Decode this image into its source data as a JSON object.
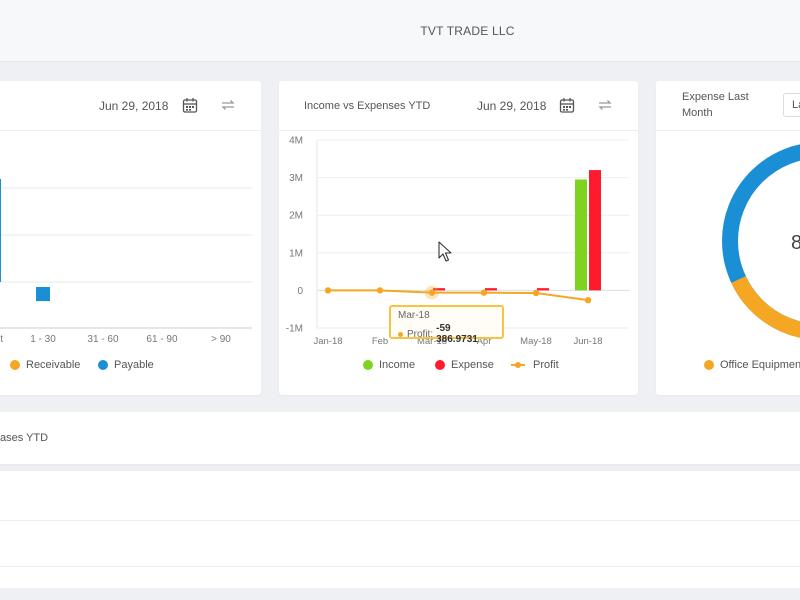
{
  "header": {
    "company": "TVT TRADE LLC"
  },
  "aging_card": {
    "date": "Jun 29, 2018",
    "categories": [
      "1 - 30",
      "31 - 60",
      "61 - 90",
      "> 90"
    ],
    "legend": [
      {
        "label": "Receivable",
        "color": "#f5a623"
      },
      {
        "label": "Payable",
        "color": "#1a8fd6"
      }
    ]
  },
  "income_card": {
    "title": "Income vs Expenses YTD",
    "date": "Jun 29, 2018",
    "legend": [
      {
        "label": "Income",
        "color": "#7ed321"
      },
      {
        "label": "Expense",
        "color": "#ff1a2e"
      },
      {
        "label": "Profit",
        "color": "#f5a623"
      }
    ],
    "tooltip": {
      "title": "Mar-18",
      "label": "Profit:",
      "value": "-59 386.9731"
    }
  },
  "expense_card": {
    "title_line1": "Expense Last",
    "title_line2": "Month",
    "select_value": "La",
    "center_value": "8",
    "legend": [
      {
        "label": "Office Equipmen",
        "color": "#f5a623"
      }
    ]
  },
  "purchases_card": {
    "title": "ases YTD"
  },
  "chart_data": [
    {
      "type": "bar",
      "categories": [
        "1 - 30",
        "31 - 60",
        "61 - 90",
        "> 90"
      ],
      "series": [
        {
          "name": "Receivable",
          "values": [
            0,
            0,
            0,
            0
          ]
        },
        {
          "name": "Payable",
          "values": [
            -0.15,
            0,
            0,
            0
          ]
        }
      ]
    },
    {
      "type": "bar",
      "categories": [
        "Jan-18",
        "Feb-18",
        "Mar-18",
        "Apr-18",
        "May-18",
        "Jun-18"
      ],
      "series": [
        {
          "name": "Income",
          "values": [
            0,
            0,
            0,
            0,
            0,
            2.95
          ]
        },
        {
          "name": "Expense",
          "values": [
            0,
            0,
            0.06,
            0.06,
            0.06,
            3.2
          ]
        },
        {
          "name": "Profit",
          "values": [
            0,
            0,
            -0.059,
            -0.06,
            -0.07,
            -0.26
          ]
        }
      ],
      "y_ticks": [
        "4M",
        "3M",
        "2M",
        "1M",
        "0",
        "-1M"
      ],
      "x_tick_labels": [
        "Jan-18",
        "Feb",
        "Mar-18",
        "Apr",
        "May-18",
        "Jun-18"
      ],
      "ylim": [
        -1,
        4
      ]
    },
    {
      "type": "pie",
      "series": [
        {
          "name": "Office Equipmen",
          "color": "#f5a623"
        },
        {
          "color": "#1a8fd6"
        }
      ]
    }
  ]
}
